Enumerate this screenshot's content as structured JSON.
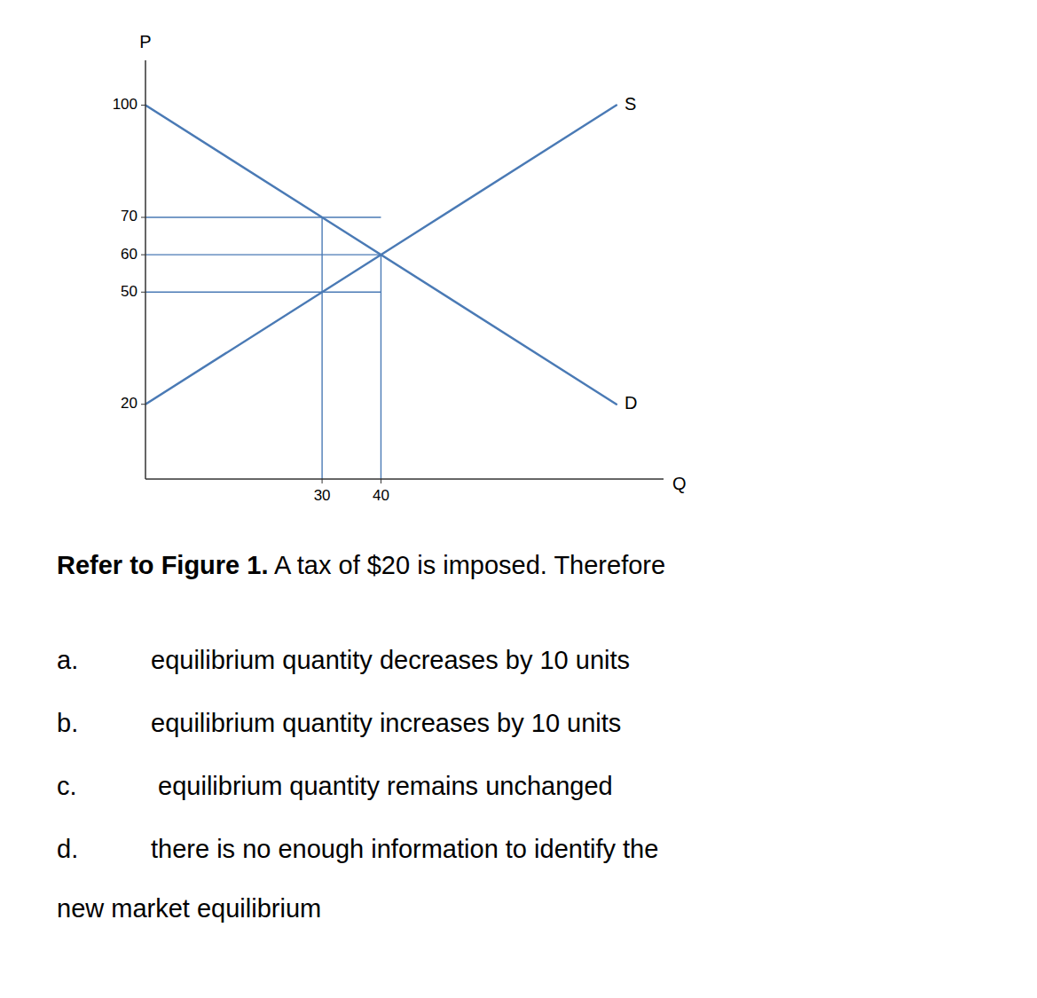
{
  "chart_data": {
    "type": "line",
    "x_label": "Q",
    "y_label": "P",
    "x": [
      0,
      80
    ],
    "series": [
      {
        "name": "S",
        "color": "#4a7ab5",
        "values": [
          20,
          100
        ]
      },
      {
        "name": "D",
        "color": "#4a7ab5",
        "values": [
          100,
          20
        ]
      }
    ],
    "hlines": [
      {
        "y": 70,
        "xmin": 0,
        "xmax": 40
      },
      {
        "y": 60,
        "xmin": 0,
        "xmax": 40
      },
      {
        "y": 50,
        "xmin": 0,
        "xmax": 40
      }
    ],
    "vlines": [
      {
        "x": 30,
        "ymin": 0,
        "ymax": 70
      },
      {
        "x": 40,
        "ymin": 0,
        "ymax": 60
      }
    ],
    "xlim": [
      0,
      88
    ],
    "ylim": [
      0,
      112
    ],
    "xticks": [
      30,
      40
    ],
    "yticks": [
      20,
      50,
      60,
      70,
      100
    ],
    "grid": false,
    "question_bold": "Refer to Figure 1.",
    "question_text": " A tax of $20 is imposed. Therefore",
    "options": [
      {
        "letter": "a.",
        "text": "equilibrium quantity decreases by 10 units"
      },
      {
        "letter": "b.",
        "text": "equilibrium quantity increases by 10 units"
      },
      {
        "letter": "c.",
        "text": " equilibrium quantity remains unchanged"
      },
      {
        "letter": "d.",
        "text": "there is no enough information to identify the"
      }
    ],
    "options_continuation": "new market equilibrium"
  }
}
